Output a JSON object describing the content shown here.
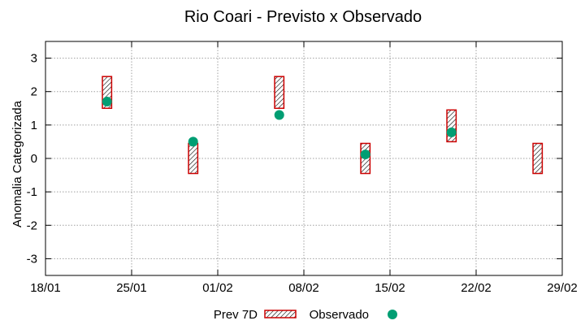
{
  "chart_data": {
    "type": "floating-bar-and-scatter",
    "title": "Rio Coari - Previsto x Observado",
    "xlabel": "",
    "ylabel": "Anomalia Categorizada",
    "ylim": [
      -3.5,
      3.5
    ],
    "yticks": [
      3,
      2,
      1,
      0,
      -1,
      -2,
      -3
    ],
    "yticklabels": [
      "3",
      "2",
      "1",
      "0",
      "-1",
      "-2",
      "-3"
    ],
    "xlim_days": [
      0,
      42
    ],
    "xticks_days": [
      0,
      7,
      14,
      21,
      28,
      35,
      42
    ],
    "xticklabels": [
      "18/01",
      "25/01",
      "01/02",
      "08/02",
      "15/02",
      "22/02",
      "29/02"
    ],
    "grid": true,
    "legend_position": "bottom",
    "series": [
      {
        "name": "Prev 7D",
        "kind": "floating-bar",
        "color": "#cc0000",
        "bars": [
          {
            "x_day": 5.0,
            "low": 1.5,
            "high": 2.45
          },
          {
            "x_day": 12.0,
            "low": -0.45,
            "high": 0.45
          },
          {
            "x_day": 19.0,
            "low": 1.5,
            "high": 2.45
          },
          {
            "x_day": 26.0,
            "low": -0.45,
            "high": 0.45
          },
          {
            "x_day": 33.0,
            "low": 0.5,
            "high": 1.45
          },
          {
            "x_day": 40.0,
            "low": -0.45,
            "high": 0.45
          }
        ]
      },
      {
        "name": "Observado",
        "kind": "scatter",
        "color": "#009e73",
        "points": [
          {
            "x_day": 5.0,
            "y": 1.7
          },
          {
            "x_day": 12.0,
            "y": 0.5
          },
          {
            "x_day": 19.0,
            "y": 1.3
          },
          {
            "x_day": 26.0,
            "y": 0.12
          },
          {
            "x_day": 33.0,
            "y": 0.78
          }
        ]
      }
    ]
  }
}
